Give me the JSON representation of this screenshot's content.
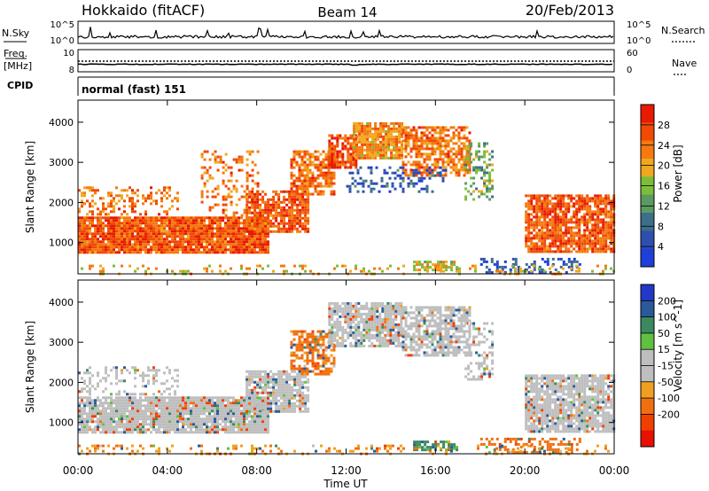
{
  "header": {
    "station": "Hokkaido (fitACF)",
    "beam": "Beam 14",
    "date": "20/Feb/2013"
  },
  "strips": {
    "nsky_label": "N.Sky",
    "nsky_ticks": [
      "10^5",
      "10^0"
    ],
    "nsearch_label": "N.Search",
    "freq_label_line1": "Freq.",
    "freq_label_line2": "[MHz]",
    "freq_ticks": [
      "10",
      "8"
    ],
    "nave_label": "Nave",
    "nave_ticks": [
      "60",
      "0"
    ],
    "cpid_label": "CPID",
    "cpid_value": "normal (fast) 151"
  },
  "colors": {
    "power_scale": [
      "#1f3fd9",
      "#2f4fb0",
      "#3d6e8a",
      "#5c9a63",
      "#7cbe3a",
      "#f0a820",
      "#f47a10",
      "#f04a06",
      "#e81a00"
    ],
    "velocity_scale": [
      "#2438c8",
      "#2a5a9a",
      "#3a8a60",
      "#60c040",
      "#bebebe",
      "#bebebe",
      "#f0a020",
      "#f07010",
      "#f04000",
      "#e81000"
    ]
  },
  "chart_data": [
    {
      "type": "heatmap",
      "title": "",
      "ylabel": "Slant Range [km]",
      "xlabel": "Time UT",
      "x_ticks": [
        "00:00",
        "04:00",
        "08:00",
        "12:00",
        "16:00",
        "20:00",
        "00:00"
      ],
      "y_ticks": [
        1000,
        2000,
        3000,
        4000
      ],
      "ylim": [
        220,
        4550
      ],
      "xlim_hours": [
        0,
        24
      ],
      "colorbar": {
        "label": "Power [dB]",
        "ticks": [
          4,
          8,
          12,
          16,
          20,
          24,
          28
        ],
        "range": [
          0,
          32
        ]
      },
      "echo_regions": [
        {
          "t0": 0.0,
          "t1": 8.5,
          "r0": 780,
          "r1": 1650,
          "value": 26,
          "fill": 0.95
        },
        {
          "t0": 0.0,
          "t1": 4.5,
          "r0": 1700,
          "r1": 2400,
          "value": 24,
          "fill": 0.35
        },
        {
          "t0": 5.5,
          "t1": 8.0,
          "r0": 1650,
          "r1": 3300,
          "value": 24,
          "fill": 0.25
        },
        {
          "t0": 7.5,
          "t1": 10.3,
          "r0": 1250,
          "r1": 2300,
          "value": 26,
          "fill": 0.8
        },
        {
          "t0": 9.5,
          "t1": 11.5,
          "r0": 2200,
          "r1": 3300,
          "value": 24,
          "fill": 0.7
        },
        {
          "t0": 11.2,
          "t1": 12.5,
          "r0": 2900,
          "r1": 3700,
          "value": 27,
          "fill": 0.8
        },
        {
          "t0": 12.3,
          "t1": 14.5,
          "r0": 3100,
          "r1": 4000,
          "value": 22,
          "fill": 0.85
        },
        {
          "t0": 14.5,
          "t1": 17.5,
          "r0": 2700,
          "r1": 3900,
          "value": 24,
          "fill": 0.7
        },
        {
          "t0": 12.0,
          "t1": 16.5,
          "r0": 2300,
          "r1": 2900,
          "value": 6,
          "fill": 0.3
        },
        {
          "t0": 17.3,
          "t1": 18.6,
          "r0": 2100,
          "r1": 3500,
          "value": 14,
          "fill": 0.35
        },
        {
          "t0": 20.0,
          "t1": 24.0,
          "r0": 750,
          "r1": 2200,
          "value": 26,
          "fill": 0.85
        },
        {
          "t0": 15.0,
          "t1": 17.0,
          "r0": 300,
          "r1": 550,
          "value": 18,
          "fill": 0.7
        },
        {
          "t0": 18.0,
          "t1": 22.5,
          "r0": 280,
          "r1": 620,
          "value": 6,
          "fill": 0.35
        },
        {
          "t0": 0.0,
          "t1": 24.0,
          "r0": 240,
          "r1": 450,
          "value": 20,
          "fill": 0.2
        }
      ]
    },
    {
      "type": "heatmap",
      "title": "",
      "ylabel": "Slant Range [km]",
      "xlabel": "Time UT",
      "x_ticks": [
        "00:00",
        "04:00",
        "08:00",
        "12:00",
        "16:00",
        "20:00",
        "00:00"
      ],
      "y_ticks": [
        1000,
        2000,
        3000,
        4000
      ],
      "ylim": [
        220,
        4550
      ],
      "xlim_hours": [
        0,
        24
      ],
      "colorbar": {
        "label": "Velocity [m s^-1]",
        "ticks": [
          200,
          100,
          50,
          15,
          -15,
          -50,
          -100,
          -200
        ]
      },
      "echo_regions": [
        {
          "t0": 0.0,
          "t1": 8.5,
          "r0": 780,
          "r1": 1650,
          "value": 0,
          "fill": 0.9
        },
        {
          "t0": 0.0,
          "t1": 4.5,
          "r0": 1700,
          "r1": 2400,
          "value": 0,
          "fill": 0.3
        },
        {
          "t0": 7.5,
          "t1": 10.3,
          "r0": 1250,
          "r1": 2300,
          "value": 0,
          "fill": 0.8
        },
        {
          "t0": 9.5,
          "t1": 11.5,
          "r0": 2200,
          "r1": 3300,
          "value": -40,
          "fill": 0.6
        },
        {
          "t0": 11.2,
          "t1": 14.5,
          "r0": 2900,
          "r1": 4000,
          "value": 0,
          "fill": 0.8
        },
        {
          "t0": 14.5,
          "t1": 17.5,
          "r0": 2700,
          "r1": 3900,
          "value": 0,
          "fill": 0.7
        },
        {
          "t0": 17.3,
          "t1": 18.6,
          "r0": 2100,
          "r1": 3500,
          "value": 0,
          "fill": 0.3
        },
        {
          "t0": 20.0,
          "t1": 24.0,
          "r0": 750,
          "r1": 2200,
          "value": 0,
          "fill": 0.85
        },
        {
          "t0": 15.0,
          "t1": 17.0,
          "r0": 300,
          "r1": 550,
          "value": 40,
          "fill": 0.7
        },
        {
          "t0": 18.0,
          "t1": 22.5,
          "r0": 280,
          "r1": 620,
          "value": -60,
          "fill": 0.4
        },
        {
          "t0": 0.0,
          "t1": 24.0,
          "r0": 240,
          "r1": 450,
          "value": -30,
          "fill": 0.2
        }
      ]
    }
  ]
}
